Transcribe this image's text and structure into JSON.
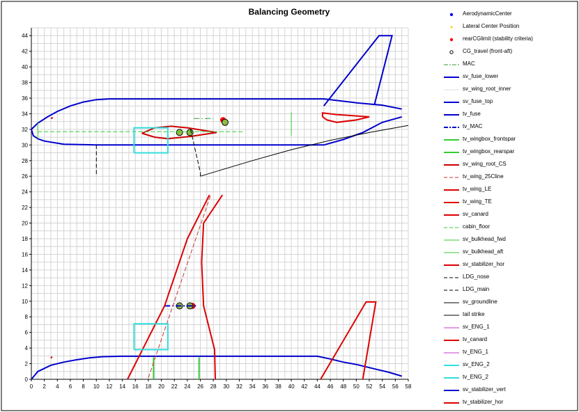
{
  "chart_data": {
    "type": "line",
    "title": "Balancing  Geometry",
    "xlabel": "",
    "ylabel": "",
    "xlim": [
      0,
      58
    ],
    "ylim": [
      0,
      45
    ],
    "x_ticks": [
      0,
      2,
      4,
      6,
      8,
      10,
      12,
      14,
      16,
      18,
      20,
      22,
      24,
      26,
      28,
      30,
      32,
      34,
      36,
      38,
      40,
      42,
      44,
      46,
      48,
      50,
      52,
      54,
      56,
      58
    ],
    "y_ticks": [
      0,
      2,
      4,
      6,
      8,
      10,
      12,
      14,
      16,
      18,
      20,
      22,
      24,
      26,
      28,
      30,
      32,
      34,
      36,
      38,
      40,
      42,
      44
    ],
    "grid": true,
    "legend_position": "right",
    "series": [
      {
        "name": "AerodynamicCenter",
        "color": "#0000ff",
        "style": "marker",
        "marker": "circle",
        "points": [
          [
            24.8,
            9.4
          ]
        ]
      },
      {
        "name": "Lateral Center Position",
        "color": "#ffcc00",
        "style": "marker",
        "marker": "dot",
        "points": [
          [
            24.4,
            9.4
          ]
        ]
      },
      {
        "name": "rearCGlimit (stability criteria)",
        "color": "#ff0000",
        "style": "marker",
        "marker": "circle",
        "points": [
          [
            29.5,
            33.2
          ],
          [
            24.8,
            9.4
          ]
        ]
      },
      {
        "name": "CG_travel (front-aft)",
        "color": "#000000",
        "style": "marker",
        "marker": "ring",
        "points": [
          [
            29.8,
            32.9
          ],
          [
            22.8,
            31.6
          ],
          [
            24.4,
            31.6
          ],
          [
            22.8,
            9.4
          ],
          [
            24.4,
            9.4
          ]
        ]
      },
      {
        "name": "MAC",
        "color": "#339933",
        "style": "dashdot",
        "points": [
          [
            25,
            33.4
          ],
          [
            28,
            33.4
          ]
        ]
      },
      {
        "name": "sv_fuse_lower",
        "color": "#0000cc",
        "style": "solid",
        "width": 2,
        "points": [
          [
            0,
            32
          ],
          [
            0.3,
            31.2
          ],
          [
            1,
            30.8
          ],
          [
            2,
            30.5
          ],
          [
            5,
            30.1
          ],
          [
            10,
            30
          ],
          [
            20,
            30
          ],
          [
            45,
            30
          ],
          [
            48,
            30.7
          ],
          [
            51,
            31.6
          ],
          [
            54,
            32.9
          ],
          [
            57,
            33.6
          ]
        ]
      },
      {
        "name": "sv_wing_root_inner",
        "color": "#dddddd",
        "style": "solid",
        "points": []
      },
      {
        "name": "sv_fuse_top",
        "color": "#0000cc",
        "style": "solid",
        "width": 2,
        "points": [
          [
            0,
            32
          ],
          [
            1,
            32.8
          ],
          [
            2.5,
            33.6
          ],
          [
            4,
            34.3
          ],
          [
            6,
            35
          ],
          [
            8,
            35.5
          ],
          [
            10,
            35.8
          ],
          [
            12,
            35.9
          ],
          [
            20,
            35.9
          ],
          [
            45,
            35.9
          ],
          [
            50,
            35.4
          ],
          [
            54,
            35.1
          ],
          [
            57,
            34.6
          ]
        ]
      },
      {
        "name": "tv_fuse",
        "color": "#0000cc",
        "style": "solid",
        "width": 2,
        "points": [
          [
            0,
            0
          ],
          [
            1,
            1
          ],
          [
            3,
            1.8
          ],
          [
            5,
            2.2
          ],
          [
            7,
            2.5
          ],
          [
            9,
            2.75
          ],
          [
            11,
            2.9
          ],
          [
            14,
            2.95
          ],
          [
            44,
            2.95
          ],
          [
            46,
            2.6
          ],
          [
            48,
            2.2
          ],
          [
            50,
            1.9
          ],
          [
            52,
            1.5
          ],
          [
            54,
            1.1
          ],
          [
            55,
            0.9
          ],
          [
            57,
            0.4
          ]
        ]
      },
      {
        "name": "tv_MAC",
        "color": "#0000cc",
        "style": "dashdot",
        "width": 2,
        "points": [
          [
            20.5,
            9.4
          ],
          [
            25.5,
            9.4
          ]
        ]
      },
      {
        "name": "tv_wingbox_frontspar",
        "color": "#33cc33",
        "style": "solid",
        "width": 2,
        "points": [
          [
            18.8,
            0
          ],
          [
            18.8,
            2.8
          ]
        ]
      },
      {
        "name": "tv_wingbox_rearspar",
        "color": "#33cc33",
        "style": "solid",
        "width": 2,
        "points": [
          [
            25.8,
            0
          ],
          [
            25.8,
            2.8
          ]
        ]
      },
      {
        "name": "sv_wing_root_CS",
        "color": "#cc0000",
        "style": "solid",
        "width": 2,
        "points": [
          [
            17,
            31.5
          ],
          [
            19,
            32.2
          ],
          [
            21.5,
            32.4
          ],
          [
            24,
            32.2
          ],
          [
            28.5,
            31.6
          ],
          [
            24.5,
            31.1
          ],
          [
            21,
            30.8
          ],
          [
            19,
            31
          ],
          [
            17,
            31.5
          ]
        ]
      },
      {
        "name": "tv_wing_25Cline",
        "color": "#cc3333",
        "style": "dashed",
        "points": [
          [
            18,
            0.2
          ],
          [
            27.6,
            23.6
          ]
        ]
      },
      {
        "name": "tv_wing_LE",
        "color": "#dd0000",
        "style": "solid",
        "width": 2,
        "points": [
          [
            14.8,
            0
          ],
          [
            20.5,
            9.4
          ],
          [
            24,
            18
          ],
          [
            27.4,
            23.6
          ]
        ]
      },
      {
        "name": "tv_wing_TE",
        "color": "#dd0000",
        "style": "solid",
        "width": 2,
        "points": [
          [
            28.3,
            0
          ],
          [
            28.2,
            3.8
          ],
          [
            26.5,
            9.4
          ],
          [
            26.2,
            15
          ],
          [
            26.5,
            20
          ],
          [
            29.4,
            23.6
          ]
        ]
      },
      {
        "name": "sv_canard",
        "color": "#dd0000",
        "style": "solid",
        "width": 2,
        "points": [
          [
            3,
            33.4
          ],
          [
            3.3,
            33.5
          ]
        ]
      },
      {
        "name": "cabin_floor",
        "color": "#33cc33",
        "style": "dashed",
        "points": [
          [
            1,
            31.7
          ],
          [
            32.5,
            31.7
          ]
        ]
      },
      {
        "name": "sv_bulkhead_fwd",
        "color": "#33cc33",
        "style": "solid",
        "points": [
          [
            1,
            30.8
          ],
          [
            1,
            32.8
          ]
        ]
      },
      {
        "name": "sv_bulkhead_aft",
        "color": "#33cc33",
        "style": "solid",
        "points": [
          [
            40,
            31.2
          ],
          [
            40,
            34.2
          ]
        ]
      },
      {
        "name": "sv_stabilizer_hor",
        "color": "#dd0000",
        "style": "solid",
        "width": 2,
        "points": [
          [
            44.8,
            33.6
          ],
          [
            45.5,
            33.2
          ],
          [
            47,
            32.9
          ],
          [
            50,
            33.2
          ],
          [
            52,
            33.6
          ],
          [
            47,
            33.9
          ],
          [
            44.8,
            34.1
          ],
          [
            44.8,
            33.6
          ]
        ]
      },
      {
        "name": "LDG_nose",
        "color": "#000000",
        "style": "dashed",
        "points": [
          [
            10,
            30
          ],
          [
            10,
            26
          ]
        ]
      },
      {
        "name": "LDG_main",
        "color": "#000000",
        "style": "dashed",
        "points": [
          [
            24.5,
            32
          ],
          [
            26,
            26.5
          ],
          [
            26,
            26
          ]
        ]
      },
      {
        "name": "sv_groundline",
        "color": "#000000",
        "style": "solid",
        "points": [
          [
            26,
            26
          ],
          [
            34,
            28
          ],
          [
            40,
            29.4
          ],
          [
            46,
            30.6
          ],
          [
            52,
            31.6
          ],
          [
            58,
            32.5
          ]
        ]
      },
      {
        "name": "tail strike",
        "color": "#000000",
        "style": "solid",
        "points": []
      },
      {
        "name": "sv_ENG_1",
        "color": "#cc33cc",
        "style": "solid",
        "points": []
      },
      {
        "name": "tv_canard",
        "color": "#dd0000",
        "style": "solid",
        "width": 2,
        "points": [
          [
            3,
            2.7
          ],
          [
            3.2,
            2.9
          ]
        ]
      },
      {
        "name": "tv_ENG_1",
        "color": "#cc33cc",
        "style": "solid",
        "points": []
      },
      {
        "name": "sv_ENG_2",
        "color": "#33dddd",
        "style": "solid",
        "width": 2,
        "points": [
          [
            15.8,
            29
          ],
          [
            21,
            29
          ],
          [
            21,
            32.2
          ],
          [
            15.8,
            32.2
          ],
          [
            15.8,
            29
          ]
        ]
      },
      {
        "name": "tv_ENG_2",
        "color": "#33dddd",
        "style": "solid",
        "width": 2,
        "points": [
          [
            15.8,
            3.8
          ],
          [
            21,
            3.8
          ],
          [
            21,
            7.1
          ],
          [
            15.8,
            7.1
          ],
          [
            15.8,
            3.8
          ]
        ]
      },
      {
        "name": "sv_stabilizer_vert",
        "color": "#0000cc",
        "style": "solid",
        "width": 2,
        "points": [
          [
            45,
            35
          ],
          [
            53.5,
            44
          ],
          [
            55.5,
            44
          ],
          [
            52.8,
            35.2
          ]
        ]
      },
      {
        "name": "tv_stabilizer_hor",
        "color": "#dd0000",
        "style": "solid",
        "width": 2,
        "points": [
          [
            44.5,
            0
          ],
          [
            51.5,
            9.9
          ],
          [
            53,
            9.9
          ],
          [
            51,
            0
          ]
        ]
      }
    ]
  }
}
